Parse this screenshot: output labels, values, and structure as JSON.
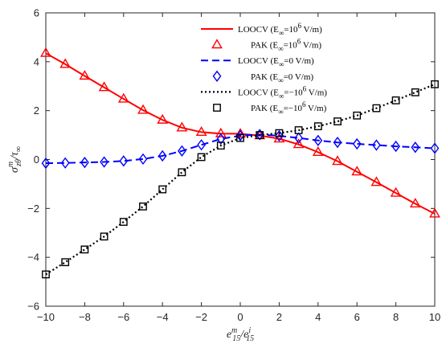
{
  "chart_data": {
    "type": "line",
    "title": "",
    "xlabel": {
      "base": "e",
      "sup1": "m",
      "sub1": "15",
      "sep": "/e",
      "sup2": "i",
      "sub2": "15"
    },
    "ylabel": {
      "base": "σ",
      "sup": "m",
      "sub": "zθ",
      "sep": "/τ",
      "sub2": "∞"
    },
    "xlim": [
      -10,
      10
    ],
    "ylim": [
      -6,
      6
    ],
    "xticks": [
      -10,
      -8,
      -6,
      -4,
      -2,
      0,
      2,
      4,
      6,
      8,
      10
    ],
    "yticks": [
      -6,
      -4,
      -2,
      0,
      2,
      4,
      6
    ],
    "xtick_labels": [
      "−10",
      "−8",
      "−6",
      "−4",
      "−2",
      "0",
      "2",
      "4",
      "6",
      "8",
      "10"
    ],
    "ytick_labels": [
      "−6",
      "−4",
      "−2",
      "0",
      "2",
      "4",
      "6"
    ],
    "grid": false,
    "legend_position": "top-right",
    "x": [
      -10,
      -9,
      -8,
      -7,
      -6,
      -5,
      -4,
      -3,
      -2,
      -1,
      0,
      1,
      2,
      3,
      4,
      5,
      6,
      7,
      8,
      9,
      10
    ],
    "series": [
      {
        "id": "loocv-pos",
        "kind": "line",
        "style": "solid",
        "color": "#ff0000",
        "legend_label": "LOOCV (E",
        "legend_sub": "∞",
        "legend_mid": "=10",
        "legend_sup": "6",
        "legend_tail": " V/m)",
        "values": [
          4.35,
          3.9,
          3.42,
          2.95,
          2.48,
          2.02,
          1.62,
          1.3,
          1.12,
          1.06,
          1.05,
          0.98,
          0.85,
          0.62,
          0.3,
          -0.07,
          -0.5,
          -0.93,
          -1.37,
          -1.81,
          -2.22
        ]
      },
      {
        "id": "pak-pos",
        "kind": "marker",
        "marker": "triangle",
        "color": "#ff0000",
        "legend_label": "PAK (E",
        "legend_sub": "∞",
        "legend_mid": "=10",
        "legend_sup": "6",
        "legend_tail": " V/m)",
        "values": [
          4.35,
          3.9,
          3.42,
          2.95,
          2.48,
          2.02,
          1.62,
          1.3,
          1.12,
          1.06,
          1.05,
          0.98,
          0.85,
          0.62,
          0.3,
          -0.07,
          -0.5,
          -0.93,
          -1.37,
          -1.81,
          -2.22
        ]
      },
      {
        "id": "loocv-zero",
        "kind": "line",
        "style": "dashed",
        "color": "#0000ff",
        "legend_label": "LOOCV (E",
        "legend_sub": "∞",
        "legend_mid": "=0 V/m)",
        "legend_sup": "",
        "legend_tail": "",
        "values": [
          -0.15,
          -0.14,
          -0.12,
          -0.1,
          -0.06,
          0.02,
          0.15,
          0.35,
          0.6,
          0.84,
          0.98,
          1.02,
          0.97,
          0.88,
          0.78,
          0.7,
          0.64,
          0.59,
          0.54,
          0.5,
          0.46
        ]
      },
      {
        "id": "pak-zero",
        "kind": "marker",
        "marker": "diamond",
        "color": "#0000ff",
        "legend_label": "PAK (E",
        "legend_sub": "∞",
        "legend_mid": "=0 V/m)",
        "legend_sup": "",
        "legend_tail": "",
        "values": [
          -0.15,
          -0.14,
          -0.12,
          -0.1,
          -0.06,
          0.02,
          0.15,
          0.35,
          0.6,
          0.84,
          0.98,
          1.02,
          0.97,
          0.88,
          0.78,
          0.7,
          0.64,
          0.59,
          0.54,
          0.5,
          0.46
        ]
      },
      {
        "id": "loocv-neg",
        "kind": "line",
        "style": "dotted",
        "color": "#000000",
        "legend_label": "LOOCV (E",
        "legend_sub": "∞",
        "legend_mid": "=−10",
        "legend_sup": "6",
        "legend_tail": " V/m)",
        "values": [
          -4.7,
          -4.2,
          -3.68,
          -3.15,
          -2.55,
          -1.92,
          -1.22,
          -0.52,
          0.1,
          0.57,
          0.88,
          1.0,
          1.08,
          1.2,
          1.36,
          1.56,
          1.8,
          2.1,
          2.42,
          2.75,
          3.08
        ]
      },
      {
        "id": "pak-neg",
        "kind": "marker",
        "marker": "square",
        "color": "#000000",
        "legend_label": "PAK (E",
        "legend_sub": "∞",
        "legend_mid": "=−10",
        "legend_sup": "6",
        "legend_tail": " V/m)",
        "values": [
          -4.7,
          -4.2,
          -3.68,
          -3.15,
          -2.55,
          -1.92,
          -1.22,
          -0.52,
          0.1,
          0.57,
          0.88,
          1.0,
          1.08,
          1.2,
          1.36,
          1.56,
          1.8,
          2.1,
          2.42,
          2.75,
          3.08
        ]
      }
    ]
  }
}
